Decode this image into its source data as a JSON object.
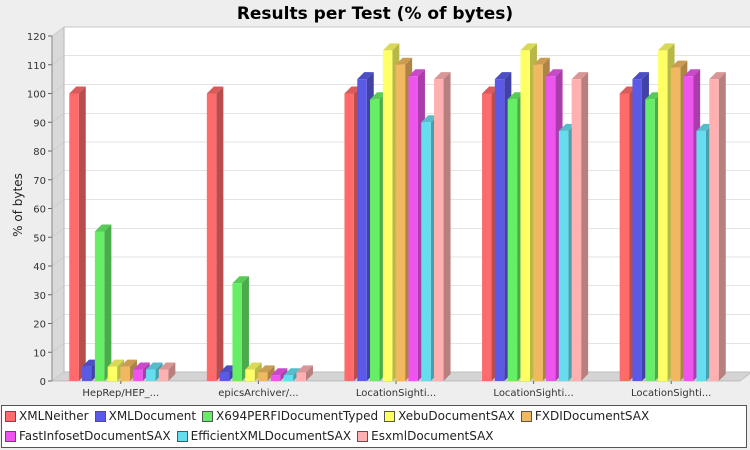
{
  "chart_data": {
    "type": "bar",
    "title": "Results per Test (% of bytes)",
    "ylabel": "% of bytes",
    "xlabel": "",
    "ylim": [
      0,
      120
    ],
    "yticks": [
      0,
      10,
      20,
      30,
      40,
      50,
      60,
      70,
      80,
      90,
      100,
      110,
      120
    ],
    "grid": true,
    "legend_position": "bottom",
    "categories": [
      "HepRep/HEP_...",
      "epicsArchiver/...",
      "LocationSighti...",
      "LocationSighti...",
      "LocationSighti..."
    ],
    "series": [
      {
        "name": "XMLNeither",
        "color": "#ff6b6b",
        "values": [
          100,
          100,
          100,
          100,
          100
        ]
      },
      {
        "name": "XMLDocument",
        "color": "#5a5ae6",
        "values": [
          5,
          3,
          105,
          105,
          105
        ]
      },
      {
        "name": "X694PERFIDocumentTyped",
        "color": "#66ee66",
        "values": [
          52,
          34,
          98,
          98,
          98
        ]
      },
      {
        "name": "XebuDocumentSAX",
        "color": "#ffff66",
        "values": [
          5,
          4,
          115,
          115,
          115
        ]
      },
      {
        "name": "FXDIDocumentSAX",
        "color": "#f0b860",
        "values": [
          5,
          3,
          110,
          110,
          109
        ]
      },
      {
        "name": "FastInfosetDocumentSAX",
        "color": "#ee55ee",
        "values": [
          4,
          2,
          106,
          106,
          106
        ]
      },
      {
        "name": "EfficientXMLDocumentSAX",
        "color": "#66ddee",
        "values": [
          4,
          2,
          90,
          87,
          87
        ]
      },
      {
        "name": "EsxmlDocumentSAX",
        "color": "#ffb0b0",
        "values": [
          4,
          3,
          105,
          105,
          105
        ]
      }
    ]
  }
}
